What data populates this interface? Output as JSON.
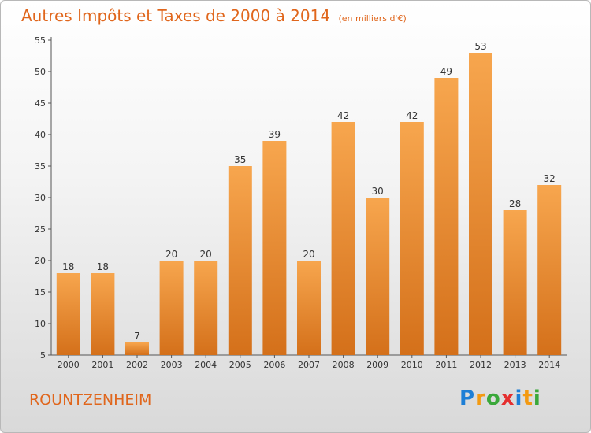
{
  "title": "Autres Impôts et Taxes de 2000 à 2014",
  "subtitle": "(en milliers d'€)",
  "region": "ROUNTZENHEIM",
  "logo": {
    "letters": [
      "P",
      "r",
      "o",
      "x",
      "i",
      "t",
      "i"
    ],
    "colors": [
      "#1e7fd6",
      "#f39a12",
      "#3aa83a",
      "#e52f2f",
      "#1e7fd6",
      "#f39a12",
      "#3aa83a"
    ]
  },
  "colors": {
    "accent": "#e0661c",
    "bar_top": "#f7a64e",
    "bar_bottom": "#d4701a"
  },
  "chart_data": {
    "type": "bar",
    "categories": [
      "2000",
      "2001",
      "2002",
      "2003",
      "2004",
      "2005",
      "2006",
      "2007",
      "2008",
      "2009",
      "2010",
      "2011",
      "2012",
      "2013",
      "2014"
    ],
    "values": [
      18,
      18,
      7,
      20,
      20,
      35,
      39,
      20,
      42,
      30,
      42,
      49,
      53,
      28,
      32
    ],
    "ylim": [
      5,
      55
    ],
    "yticks": [
      5,
      10,
      15,
      20,
      25,
      30,
      35,
      40,
      45,
      50,
      55
    ],
    "grid": false
  }
}
